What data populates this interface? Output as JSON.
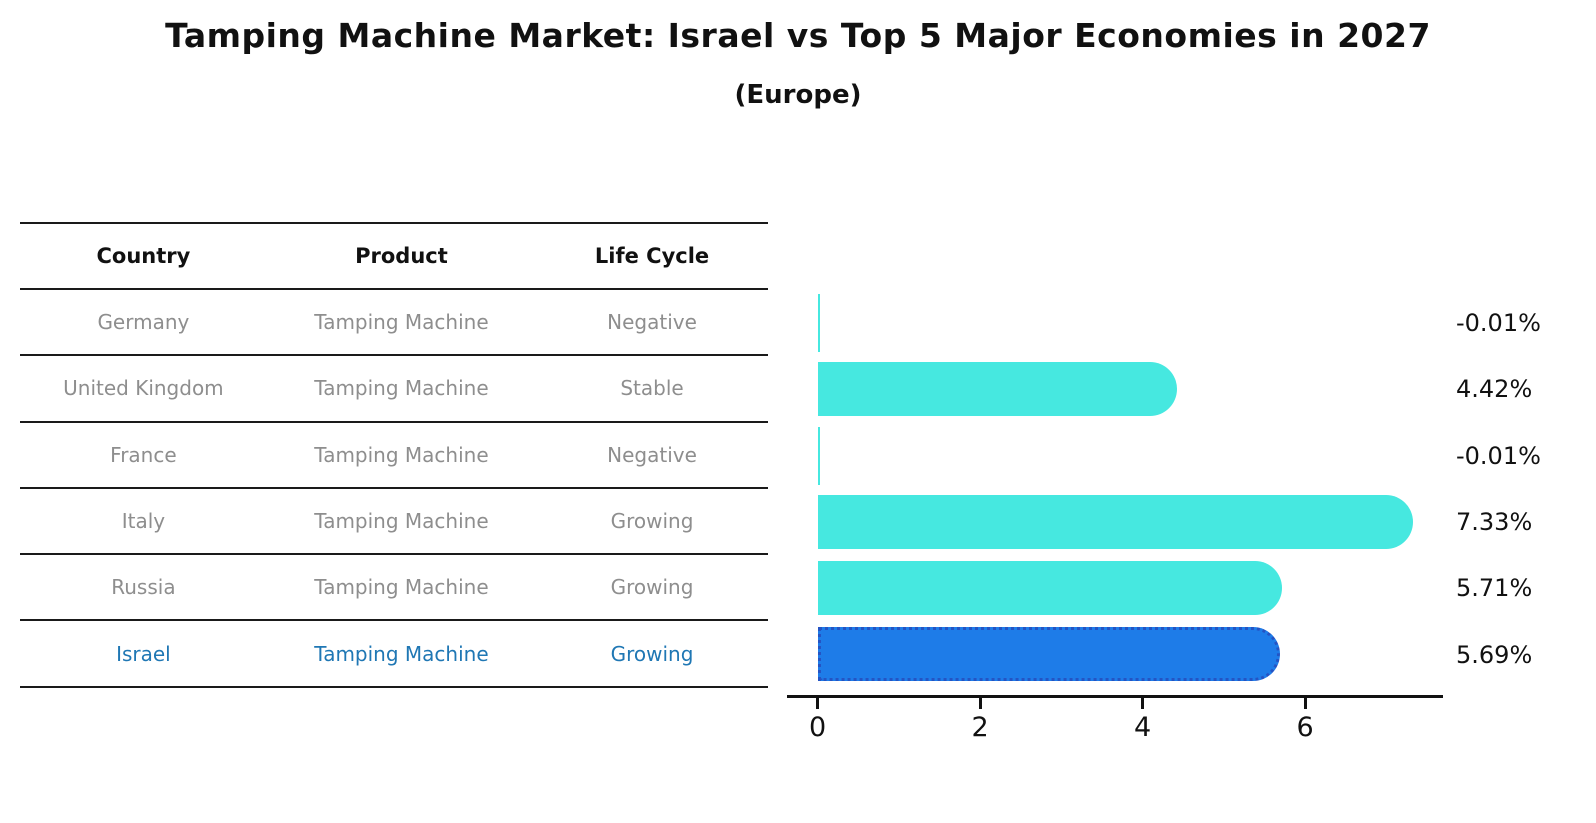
{
  "chart_data": {
    "type": "bar",
    "orientation": "horizontal",
    "title": "Tamping Machine Market: Israel vs Top 5 Major Economies in 2027",
    "subtitle": "(Europe)",
    "categories": [
      "Germany",
      "United Kingdom",
      "France",
      "Italy",
      "Russia",
      "Israel"
    ],
    "values": [
      -0.01,
      4.42,
      -0.01,
      7.33,
      5.71,
      5.69
    ],
    "value_labels": [
      "-0.01%",
      "4.42%",
      "-0.01%",
      "7.33%",
      "5.71%",
      "5.69%"
    ],
    "x_ticks": [
      0,
      2,
      4,
      6
    ],
    "xlim": [
      -0.377,
      7.697
    ],
    "grid": false,
    "legend": "none",
    "highlight_index": 5,
    "bar_color": "#46e8e0",
    "highlight_bar_color": "#1e7ce8",
    "highlight_border_color": "#2454c4",
    "highlight_text_color": "#1f77b4"
  },
  "table": {
    "headers": [
      "Country",
      "Product",
      "Life Cycle"
    ],
    "rows": [
      {
        "country": "Germany",
        "product": "Tamping Machine",
        "life_cycle": "Negative",
        "highlight": false
      },
      {
        "country": "United Kingdom",
        "product": "Tamping Machine",
        "life_cycle": "Stable",
        "highlight": false
      },
      {
        "country": "France",
        "product": "Tamping Machine",
        "life_cycle": "Negative",
        "highlight": false
      },
      {
        "country": "Italy",
        "product": "Tamping Machine",
        "life_cycle": "Growing",
        "highlight": false
      },
      {
        "country": "Russia",
        "product": "Tamping Machine",
        "life_cycle": "Growing",
        "highlight": false
      },
      {
        "country": "Israel",
        "product": "Tamping Machine",
        "life_cycle": "Growing",
        "highlight": true
      }
    ]
  }
}
